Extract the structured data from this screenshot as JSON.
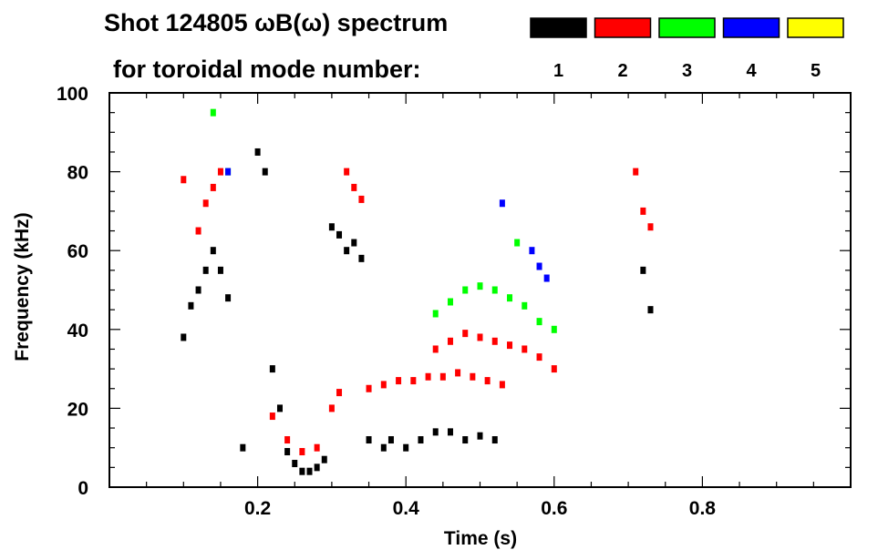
{
  "chart_data": {
    "type": "scatter",
    "title_line1": "Shot 124805 ωB(ω) spectrum",
    "title_line2": "for toroidal mode number:",
    "xlabel": "Time (s)",
    "ylabel": "Frequency (kHz)",
    "xlim": [
      0.0,
      1.0
    ],
    "ylim": [
      0,
      100
    ],
    "x_ticks": [
      0.2,
      0.4,
      0.6,
      0.8
    ],
    "x_tick_labels": [
      "0.2",
      "0.4",
      "0.6",
      "0.8"
    ],
    "y_ticks": [
      0,
      20,
      40,
      60,
      80,
      100
    ],
    "y_tick_labels": [
      "0",
      "20",
      "40",
      "60",
      "80",
      "100"
    ],
    "legend": [
      {
        "label": "1",
        "color": "#000000"
      },
      {
        "label": "2",
        "color": "#ff0000"
      },
      {
        "label": "3",
        "color": "#00ff00"
      },
      {
        "label": "4",
        "color": "#0000ff"
      },
      {
        "label": "5",
        "color": "#ffff00"
      }
    ],
    "series": [
      {
        "name": "n=1",
        "color": "#000000",
        "points": [
          [
            0.1,
            38
          ],
          [
            0.11,
            46
          ],
          [
            0.12,
            50
          ],
          [
            0.13,
            55
          ],
          [
            0.14,
            60
          ],
          [
            0.15,
            55
          ],
          [
            0.16,
            48
          ],
          [
            0.18,
            10
          ],
          [
            0.2,
            85
          ],
          [
            0.21,
            80
          ],
          [
            0.22,
            30
          ],
          [
            0.23,
            20
          ],
          [
            0.24,
            9
          ],
          [
            0.25,
            6
          ],
          [
            0.26,
            4
          ],
          [
            0.27,
            4
          ],
          [
            0.28,
            5
          ],
          [
            0.29,
            7
          ],
          [
            0.3,
            66
          ],
          [
            0.31,
            64
          ],
          [
            0.32,
            60
          ],
          [
            0.33,
            62
          ],
          [
            0.34,
            58
          ],
          [
            0.35,
            12
          ],
          [
            0.37,
            10
          ],
          [
            0.38,
            12
          ],
          [
            0.4,
            10
          ],
          [
            0.42,
            12
          ],
          [
            0.44,
            14
          ],
          [
            0.46,
            14
          ],
          [
            0.48,
            12
          ],
          [
            0.5,
            13
          ],
          [
            0.52,
            12
          ],
          [
            0.72,
            55
          ],
          [
            0.73,
            45
          ]
        ]
      },
      {
        "name": "n=2",
        "color": "#ff0000",
        "points": [
          [
            0.1,
            78
          ],
          [
            0.12,
            65
          ],
          [
            0.13,
            72
          ],
          [
            0.14,
            76
          ],
          [
            0.15,
            80
          ],
          [
            0.22,
            18
          ],
          [
            0.24,
            12
          ],
          [
            0.26,
            9
          ],
          [
            0.28,
            10
          ],
          [
            0.3,
            20
          ],
          [
            0.31,
            24
          ],
          [
            0.32,
            80
          ],
          [
            0.33,
            76
          ],
          [
            0.34,
            73
          ],
          [
            0.35,
            25
          ],
          [
            0.37,
            26
          ],
          [
            0.39,
            27
          ],
          [
            0.41,
            27
          ],
          [
            0.43,
            28
          ],
          [
            0.45,
            28
          ],
          [
            0.47,
            29
          ],
          [
            0.49,
            28
          ],
          [
            0.51,
            27
          ],
          [
            0.53,
            26
          ],
          [
            0.44,
            35
          ],
          [
            0.46,
            37
          ],
          [
            0.48,
            39
          ],
          [
            0.5,
            38
          ],
          [
            0.52,
            37
          ],
          [
            0.54,
            36
          ],
          [
            0.56,
            35
          ],
          [
            0.58,
            33
          ],
          [
            0.6,
            30
          ],
          [
            0.71,
            80
          ],
          [
            0.72,
            70
          ],
          [
            0.73,
            66
          ]
        ]
      },
      {
        "name": "n=3",
        "color": "#00ff00",
        "points": [
          [
            0.14,
            95
          ],
          [
            0.16,
            80
          ],
          [
            0.44,
            44
          ],
          [
            0.46,
            47
          ],
          [
            0.48,
            50
          ],
          [
            0.5,
            51
          ],
          [
            0.52,
            50
          ],
          [
            0.54,
            48
          ],
          [
            0.56,
            46
          ],
          [
            0.58,
            42
          ],
          [
            0.6,
            40
          ],
          [
            0.55,
            62
          ]
        ]
      },
      {
        "name": "n=4",
        "color": "#0000ff",
        "points": [
          [
            0.16,
            80
          ],
          [
            0.53,
            72
          ],
          [
            0.57,
            60
          ],
          [
            0.58,
            56
          ],
          [
            0.59,
            53
          ]
        ]
      },
      {
        "name": "n=5",
        "color": "#ffff00",
        "points": []
      }
    ]
  }
}
